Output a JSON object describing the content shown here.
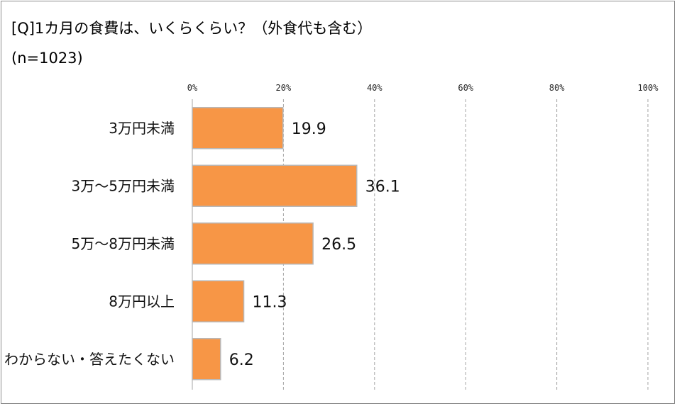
{
  "chart_data": {
    "type": "bar",
    "orientation": "horizontal",
    "title": "[Q]1カ月の食費は、いくらくらい？（外食代も含む）",
    "subtitle": "(n=1023)",
    "categories": [
      "3万円未満",
      "3万～5万円未満",
      "5万～8万円未満",
      "8万円以上",
      "わからない・答えたくない"
    ],
    "values": [
      19.9,
      36.1,
      26.5,
      11.3,
      6.2
    ],
    "value_labels": [
      "19.9",
      "36.1",
      "26.5",
      "11.3",
      "6.2"
    ],
    "xlim": [
      0,
      100
    ],
    "ticks": [
      0,
      20,
      40,
      60,
      80,
      100
    ],
    "tick_labels": [
      "0%",
      "20%",
      "40%",
      "60%",
      "80%",
      "100%"
    ],
    "grid": "vertical dashed",
    "legend": "none",
    "bar_color": "#F79646",
    "bar_border_color": "#B8B8B8"
  }
}
